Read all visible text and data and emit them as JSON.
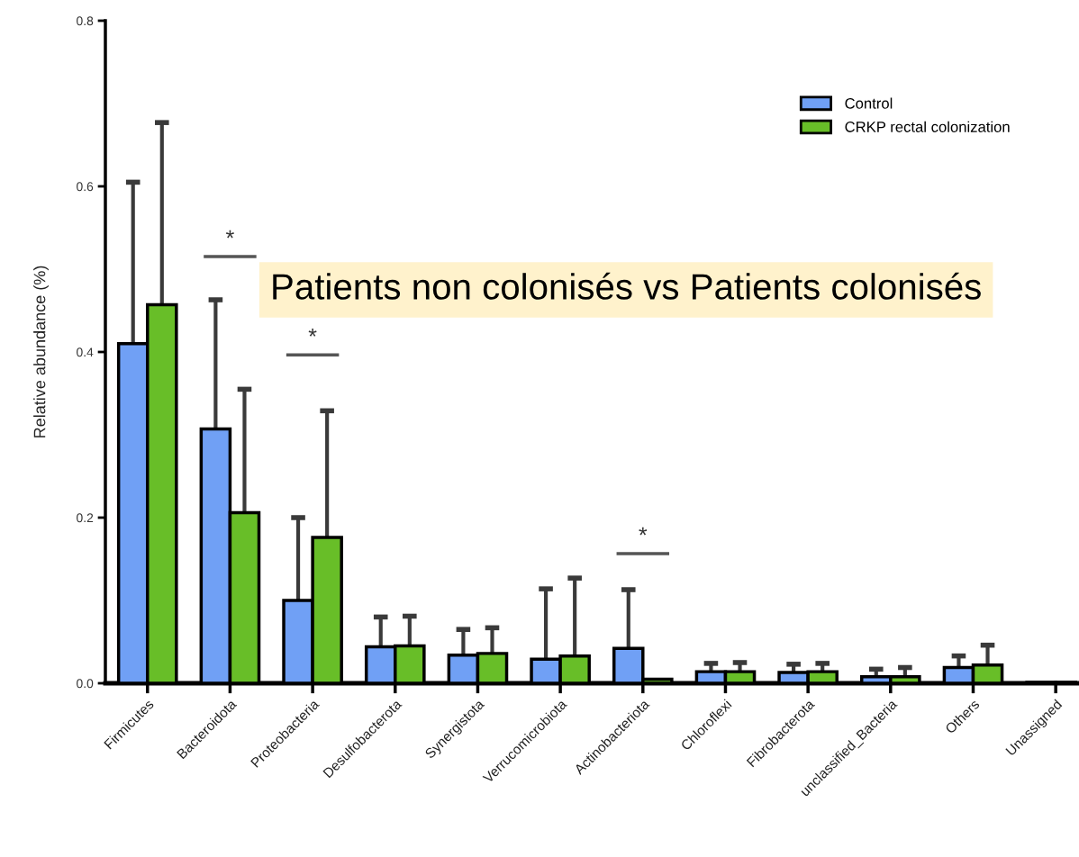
{
  "chart_data": {
    "type": "bar",
    "title": "Patients non colonisés vs Patients colonisés",
    "ylabel": "Relative abundance (%)",
    "categories": [
      "Firmicutes",
      "Bacteroidota",
      "Proteobacteria",
      "Desulfobacterota",
      "Synergistota",
      "Verrucomicrobiota",
      "Actinobacteriota",
      "Chloroflexi",
      "Fibrobacterota",
      "unclassified_Bacteria",
      "Others",
      "Unassigned"
    ],
    "series": [
      {
        "name": "Control",
        "color": "#70a0f5",
        "values": [
          0.41,
          0.307,
          0.1,
          0.044,
          0.034,
          0.029,
          0.042,
          0.014,
          0.013,
          0.008,
          0.019,
          0.001
        ],
        "errors": [
          [
            0.41,
            0.605
          ],
          [
            0.307,
            0.463
          ],
          [
            0.1,
            0.2
          ],
          [
            0.044,
            0.08
          ],
          [
            0.034,
            0.065
          ],
          [
            0.029,
            0.114
          ],
          [
            0.042,
            0.113
          ],
          [
            0.014,
            0.024
          ],
          [
            0.013,
            0.023
          ],
          [
            0.008,
            0.017
          ],
          [
            0.019,
            0.033
          ],
          null
        ]
      },
      {
        "name": "CRKP rectal colonization",
        "color": "#68be28",
        "values": [
          0.457,
          0.206,
          0.176,
          0.045,
          0.036,
          0.033,
          0.005,
          0.014,
          0.014,
          0.008,
          0.022,
          0.001
        ],
        "errors": [
          [
            0.457,
            0.677
          ],
          [
            0.206,
            0.355
          ],
          [
            0.176,
            0.329
          ],
          [
            0.045,
            0.081
          ],
          [
            0.036,
            0.067
          ],
          [
            0.033,
            0.127
          ],
          null,
          [
            0.014,
            0.025
          ],
          [
            0.014,
            0.024
          ],
          [
            0.008,
            0.019
          ],
          [
            0.022,
            0.046
          ],
          null
        ]
      }
    ],
    "ylim": [
      0,
      0.8
    ],
    "yticks": [
      {
        "value": 0,
        "label": "0.0"
      },
      0.2,
      0.4,
      0.6,
      0.8
    ],
    "legend": "top right",
    "annotations": [
      "*",
      "*",
      "*"
    ]
  }
}
